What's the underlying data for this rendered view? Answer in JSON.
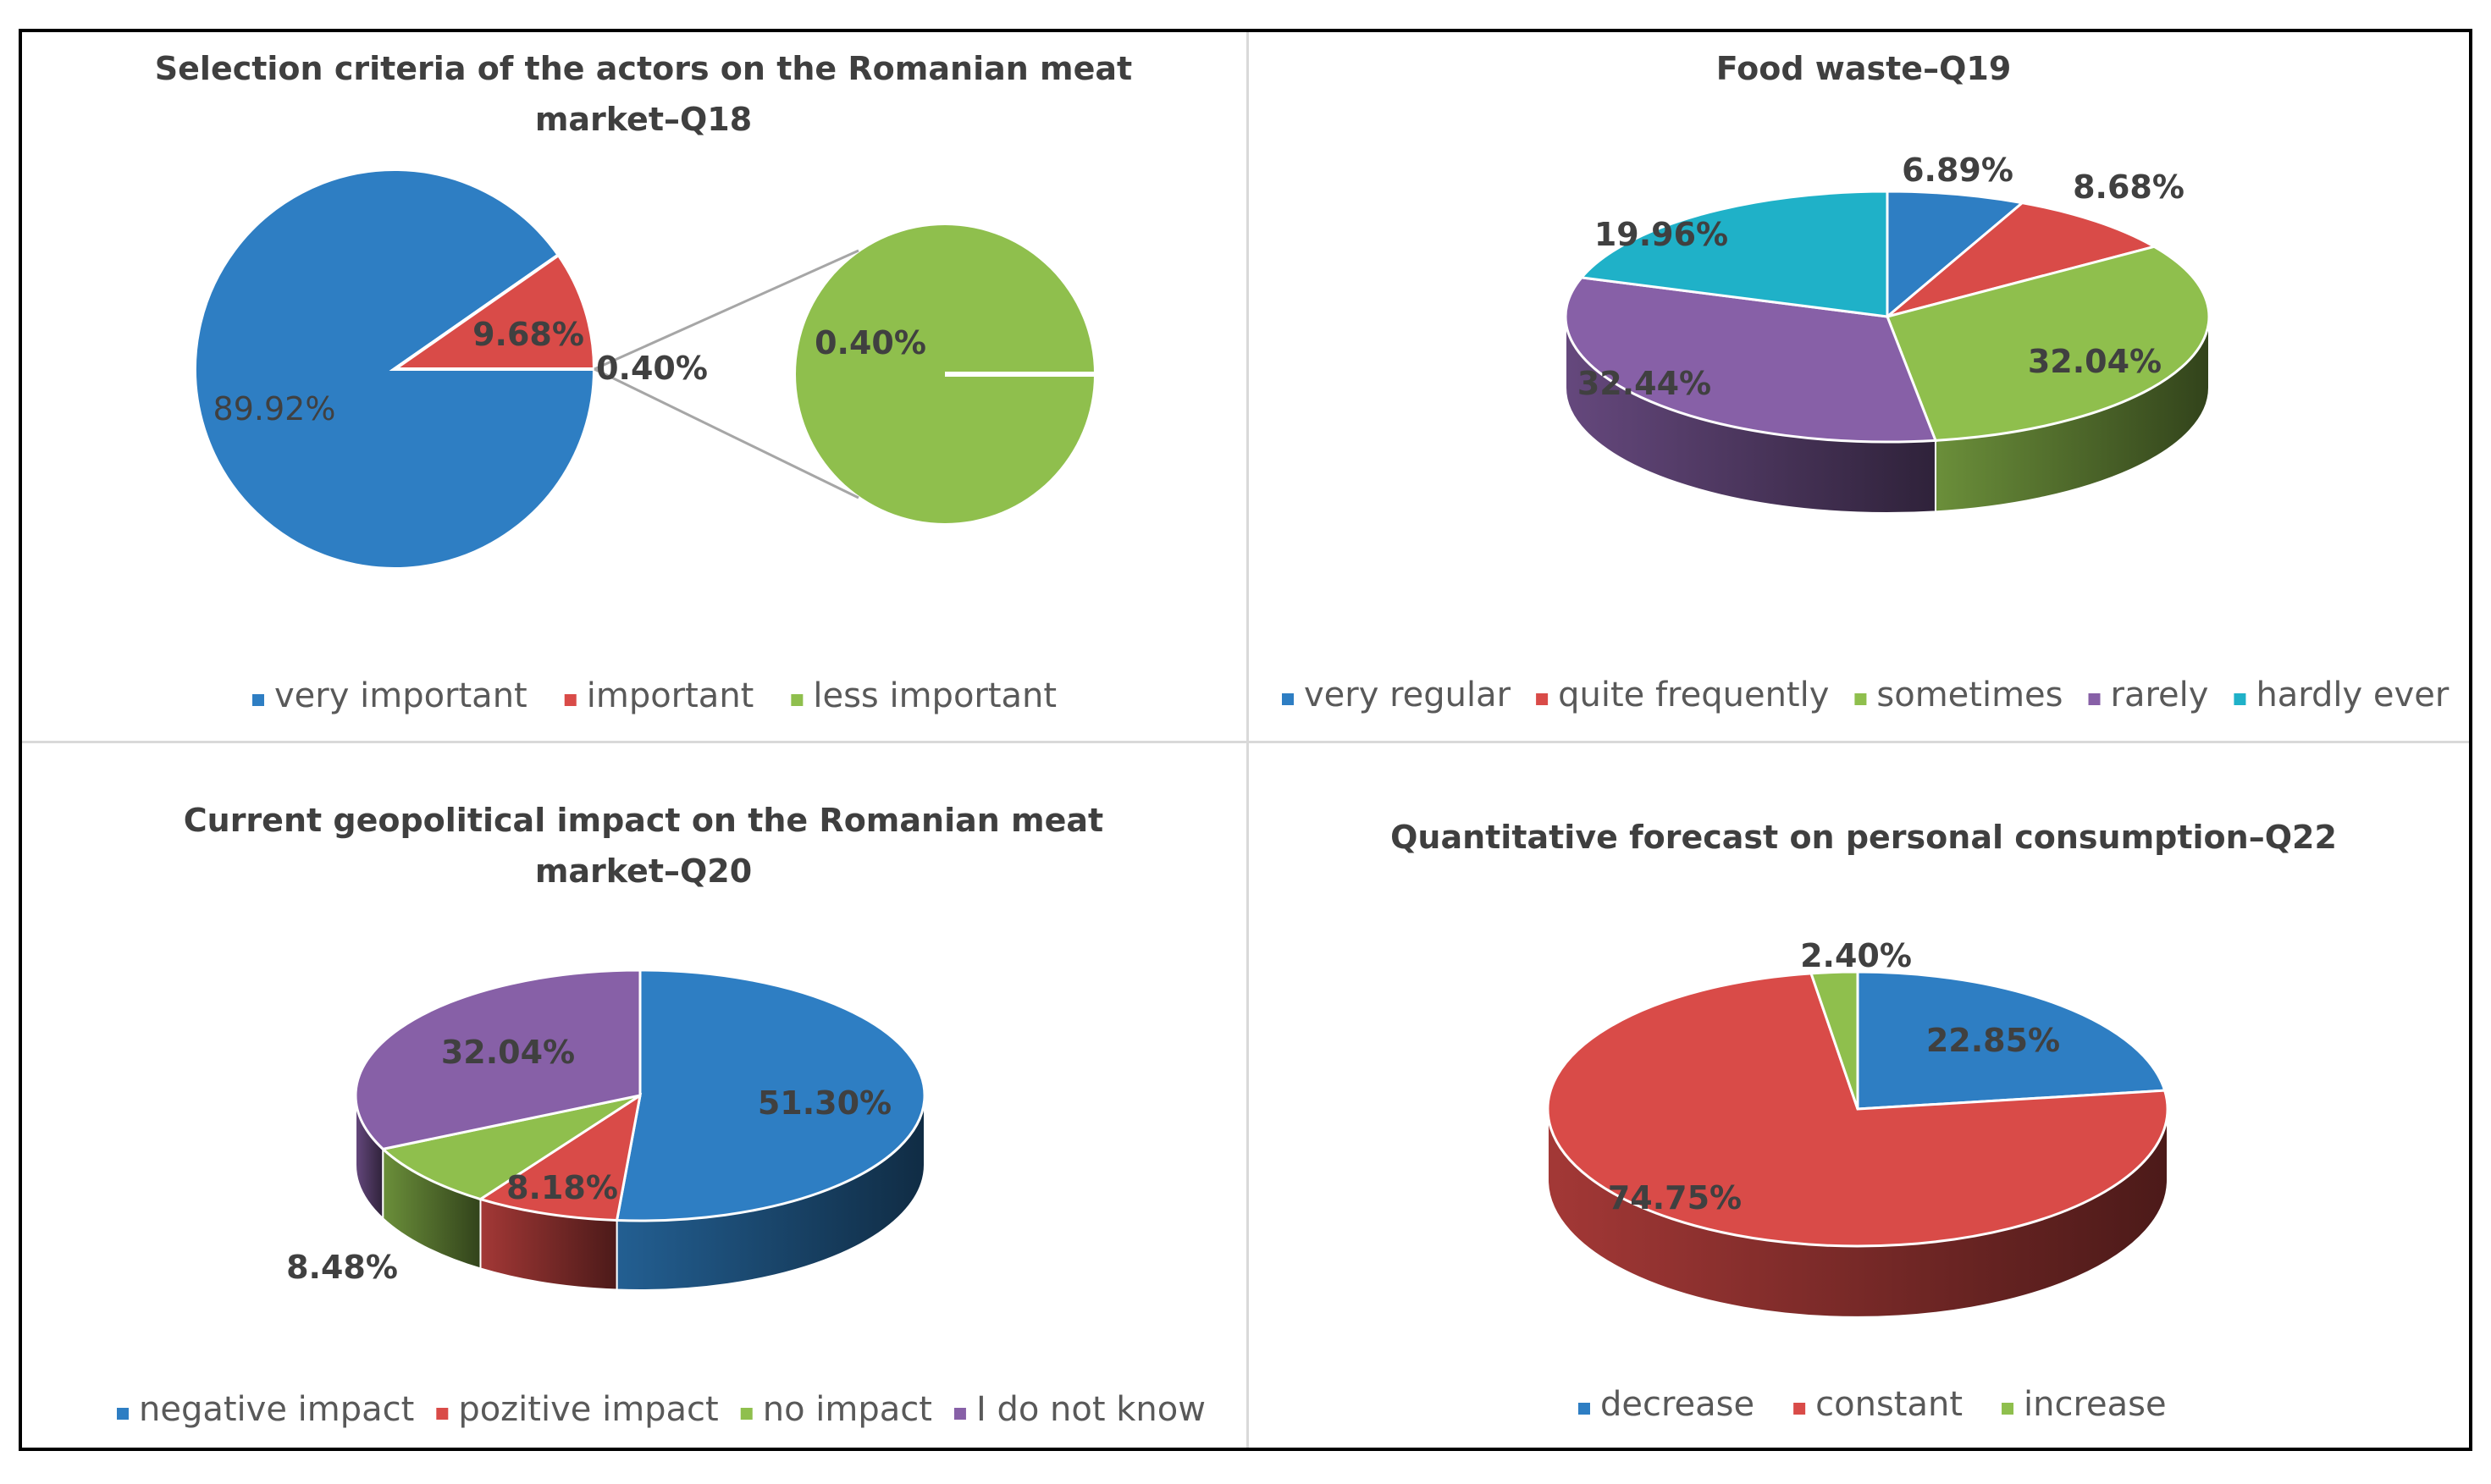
{
  "colors": {
    "blue": "#2e7ec3",
    "red": "#d94b48",
    "green": "#8fbf4d",
    "purple": "#8760a7",
    "teal": "#1fb1c8",
    "text": "#404040",
    "legend_text": "#595959",
    "grid": "#d9d9d9"
  },
  "chart_data": [
    {
      "id": "q18",
      "type": "pie",
      "variant": "pie-of-pie",
      "title_lines": [
        "Selection criteria of the actors on the Romanian meat",
        "market–Q18"
      ],
      "categories": [
        "very important",
        "important",
        "less important"
      ],
      "values": [
        89.92,
        9.68,
        0.4
      ],
      "labels": [
        "89.92%",
        "9.68%",
        "0.40%"
      ],
      "secondary": {
        "values": [
          0.4
        ],
        "labels": [
          "0.40%"
        ]
      },
      "colors": [
        "#2e7ec3",
        "#d94b48",
        "#8fbf4d"
      ],
      "legend": [
        "very important",
        "important",
        "less important"
      ],
      "legend_position": "bottom"
    },
    {
      "id": "q19",
      "type": "pie",
      "variant": "3d",
      "title_lines": [
        "Food waste–Q19"
      ],
      "categories": [
        "very regular",
        "quite frequently",
        "sometimes",
        "rarely",
        "hardly ever"
      ],
      "values": [
        6.89,
        8.68,
        32.04,
        32.44,
        19.96
      ],
      "labels": [
        "6.89%",
        "8.68%",
        "32.04%",
        "32.44%",
        "19.96%"
      ],
      "colors": [
        "#2e7ec3",
        "#d94b48",
        "#8fbf4d",
        "#8760a7",
        "#1fb1c8"
      ],
      "legend": [
        "very regular",
        "quite frequently",
        "sometimes",
        "rarely",
        "hardly ever"
      ],
      "legend_position": "bottom"
    },
    {
      "id": "q20",
      "type": "pie",
      "variant": "3d",
      "title_lines": [
        "Current geopolitical impact on the Romanian meat",
        "market–Q20"
      ],
      "categories": [
        "negative impact",
        "pozitive impact",
        "no impact",
        "I do not know"
      ],
      "values": [
        51.3,
        8.18,
        8.48,
        32.04
      ],
      "labels": [
        "51.30%",
        "8.18%",
        "8.48%",
        "32.04%"
      ],
      "colors": [
        "#2e7ec3",
        "#d94b48",
        "#8fbf4d",
        "#8760a7"
      ],
      "legend": [
        "negative impact",
        "pozitive impact",
        "no impact",
        "I do not know"
      ],
      "legend_position": "bottom"
    },
    {
      "id": "q22",
      "type": "pie",
      "variant": "3d",
      "title_lines": [
        "Quantitative forecast on personal consumption–Q22"
      ],
      "categories": [
        "decrease",
        "constant",
        "increase"
      ],
      "values": [
        22.85,
        74.75,
        2.4
      ],
      "labels": [
        "22.85%",
        "74.75%",
        "2.40%"
      ],
      "colors": [
        "#2e7ec3",
        "#d94b48",
        "#8fbf4d"
      ],
      "legend": [
        "decrease",
        "constant",
        "increase"
      ],
      "legend_position": "bottom"
    }
  ]
}
